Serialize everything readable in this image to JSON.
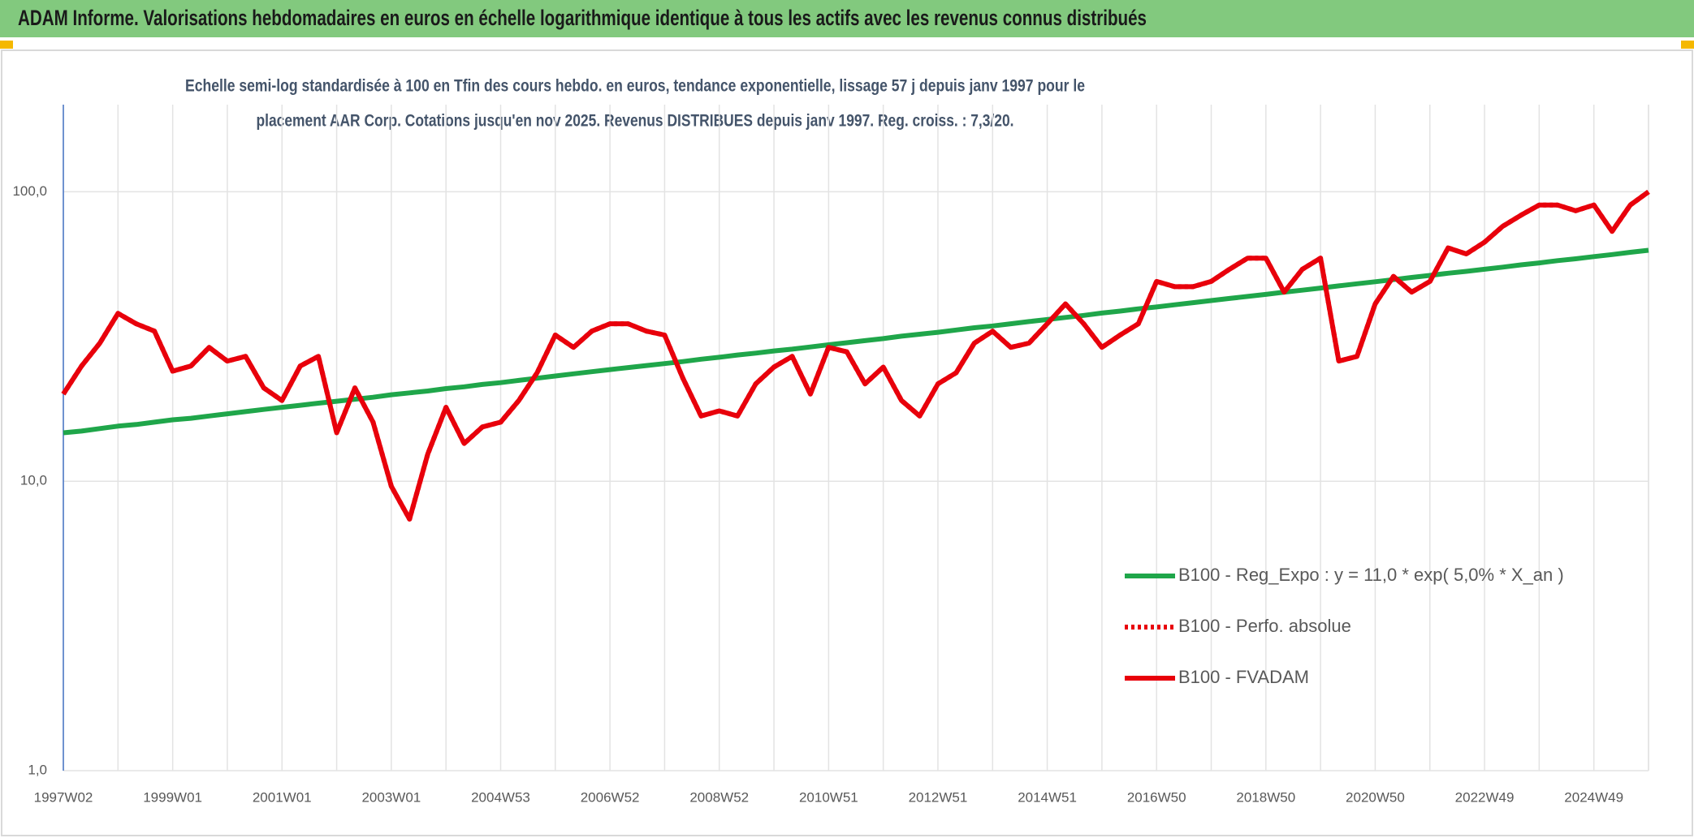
{
  "chart_data": {
    "type": "line",
    "title": "ADAM Informe. Valorisations hebdomadaires en euros en échelle logarithmique identique à tous les actifs avec les revenus connus distribués",
    "subtitle": [
      "Echelle semi-log standardisée à 100 en Tfin des cours hebdo. en euros, tendance exponentielle, lissage 57 j depuis janv 1997 pour le",
      "placement AAR Corp. Cotations jusqu'en nov 2025. Revenus DISTRIBUES depuis janv 1997. Reg. croiss. : 7,3/20."
    ],
    "categories": [
      "1997W02",
      null,
      null,
      null,
      null,
      null,
      "1999W01",
      null,
      null,
      null,
      null,
      null,
      "2001W01",
      null,
      null,
      null,
      null,
      null,
      "2003W01",
      null,
      null,
      null,
      null,
      null,
      "2004W53",
      null,
      null,
      null,
      null,
      null,
      "2006W52",
      null,
      null,
      null,
      null,
      null,
      "2008W52",
      null,
      null,
      null,
      null,
      null,
      "2010W51",
      null,
      null,
      null,
      null,
      null,
      "2012W51",
      null,
      null,
      null,
      null,
      null,
      "2014W51",
      null,
      null,
      null,
      null,
      null,
      "2016W50",
      null,
      null,
      null,
      null,
      null,
      "2018W50",
      null,
      null,
      null,
      null,
      null,
      "2020W50",
      null,
      null,
      null,
      null,
      null,
      "2022W49",
      null,
      null,
      null,
      null,
      null,
      "2024W49",
      null,
      null,
      null
    ],
    "log_scale": true,
    "ylim": [
      1,
      200
    ],
    "yticks": [
      {
        "value": 1,
        "label": "1,0"
      },
      {
        "value": 10,
        "label": "10,0"
      },
      {
        "value": 100,
        "label": "100,0"
      }
    ],
    "grid": true,
    "legend": "right",
    "series": [
      {
        "name": "B100 - Reg_Expo : y = 11,0 * exp( 5,0% *  X_an )",
        "color": "#1fa64a",
        "dash": "solid",
        "values": [
          14.7,
          14.9,
          15.2,
          15.5,
          15.7,
          16.0,
          16.3,
          16.5,
          16.8,
          17.1,
          17.4,
          17.7,
          18.0,
          18.3,
          18.6,
          18.9,
          19.2,
          19.5,
          19.9,
          20.2,
          20.5,
          20.9,
          21.2,
          21.6,
          21.9,
          22.3,
          22.7,
          23.1,
          23.5,
          23.9,
          24.3,
          24.7,
          25.1,
          25.5,
          25.9,
          26.4,
          26.8,
          27.3,
          27.7,
          28.2,
          28.6,
          29.1,
          29.6,
          30.1,
          30.6,
          31.1,
          31.7,
          32.2,
          32.7,
          33.3,
          33.9,
          34.4,
          35.0,
          35.6,
          36.2,
          36.8,
          37.4,
          38.1,
          38.7,
          39.4,
          40.0,
          40.7,
          41.4,
          42.1,
          42.8,
          43.5,
          44.2,
          45.0,
          45.7,
          46.5,
          47.3,
          48.1,
          48.9,
          49.7,
          50.6,
          51.4,
          52.3,
          53.1,
          54.0,
          54.9,
          55.9,
          56.8,
          57.8,
          58.7,
          59.7,
          60.7,
          61.8,
          62.8
        ]
      },
      {
        "name": "B100 - Perfo. absolue",
        "color": "#e8000b",
        "dash": "dot",
        "values": [
          20,
          25,
          30,
          38,
          35,
          33,
          24,
          25,
          29,
          26,
          27,
          21,
          19,
          25,
          27,
          14.7,
          21,
          16,
          9.6,
          7.4,
          12.4,
          18,
          13.5,
          15.4,
          16,
          19,
          23.7,
          32,
          29,
          33,
          35,
          35,
          33,
          32,
          22.7,
          16.8,
          17.5,
          16.8,
          21.7,
          24.8,
          27,
          20,
          29,
          28,
          21.7,
          24.8,
          19,
          16.8,
          21.7,
          23.7,
          30,
          33,
          29,
          30,
          35,
          41,
          35,
          29,
          32,
          35,
          49,
          47,
          47,
          49,
          54,
          59,
          59,
          45,
          54,
          59,
          26,
          27,
          41,
          51,
          45,
          49,
          64,
          61,
          67,
          76,
          83,
          90,
          90,
          86,
          90,
          73,
          90,
          100
        ]
      },
      {
        "name": "B100 - FVADAM",
        "color": "#e8000b",
        "dash": "solid",
        "values": [
          20,
          25,
          30,
          38,
          35,
          33,
          24,
          25,
          29,
          26,
          27,
          21,
          19,
          25,
          27,
          14.7,
          21,
          16,
          9.6,
          7.4,
          12.4,
          18,
          13.5,
          15.4,
          16,
          19,
          23.7,
          32,
          29,
          33,
          35,
          35,
          33,
          32,
          22.7,
          16.8,
          17.5,
          16.8,
          21.7,
          24.8,
          27,
          20,
          29,
          28,
          21.7,
          24.8,
          19,
          16.8,
          21.7,
          23.7,
          30,
          33,
          29,
          30,
          35,
          41,
          35,
          29,
          32,
          35,
          49,
          47,
          47,
          49,
          54,
          59,
          59,
          45,
          54,
          59,
          26,
          27,
          41,
          51,
          45,
          49,
          64,
          61,
          67,
          76,
          83,
          90,
          90,
          86,
          90,
          73,
          90,
          100
        ]
      }
    ]
  }
}
